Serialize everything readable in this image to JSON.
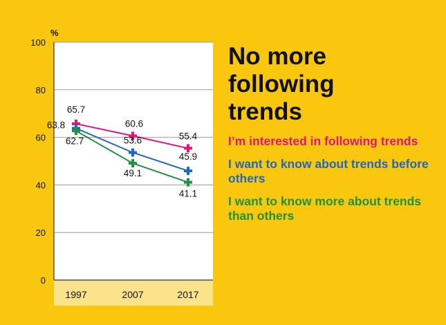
{
  "chart_data": {
    "type": "line",
    "title": "No more\nfollowing\ntrends",
    "ylabel": "%",
    "ylim": [
      0,
      100
    ],
    "yticks": [
      0,
      20,
      40,
      60,
      80,
      100
    ],
    "categories": [
      "1997",
      "2007",
      "2017"
    ],
    "grid": true,
    "legend_placement": "right",
    "series": [
      {
        "name": "I’m interested in following trends",
        "color": "#e4147a",
        "marker": "plus-icon",
        "values": [
          65.7,
          60.6,
          55.4
        ],
        "labels": [
          "65.7",
          "60.6",
          "55.4"
        ]
      },
      {
        "name": "I want to know about trends before others",
        "color": "#2166c0",
        "marker": "plus-icon",
        "values": [
          63.8,
          53.6,
          45.9
        ],
        "labels": [
          "63.8",
          "53.6",
          "45.9"
        ]
      },
      {
        "name": "I want to know more about trends than others",
        "color": "#1f9142",
        "marker": "plus-icon",
        "values": [
          62.7,
          49.1,
          41.1
        ],
        "labels": [
          "62.7",
          "49.1",
          "41.1"
        ]
      }
    ]
  }
}
